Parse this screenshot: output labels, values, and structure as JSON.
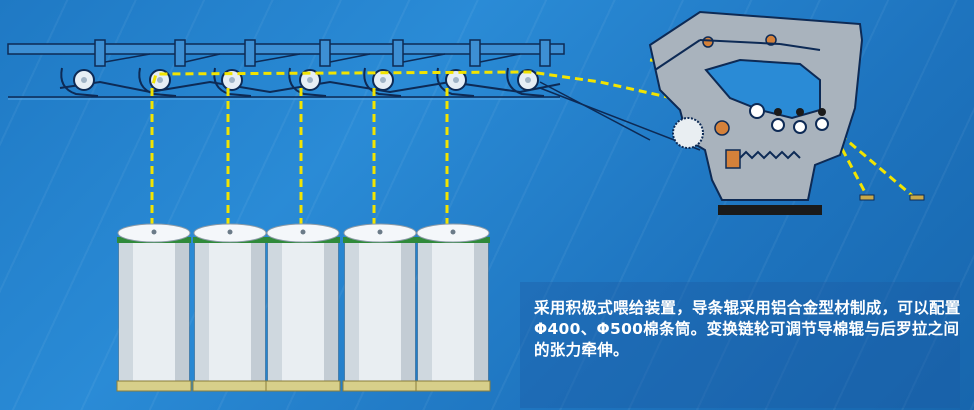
{
  "caption": {
    "text": "采用积极式喂给装置，导条辊采用铝合金型材制成，可以配置Φ400、Φ500棉条筒。变换链轮可调节导棉辊与后罗拉之间的张力牵伸。"
  },
  "colors": {
    "background": "#2a8bd6",
    "frame_line": "#0d2a55",
    "sliver": "#f2e400",
    "can_body": "#e9eef2",
    "can_rim": "#2f8a3a",
    "can_base": "#d7cf8a",
    "machine_body": "#a9b3bd",
    "caption_text": "#ffffff"
  },
  "diagram": {
    "can_count": 5,
    "guide_roller_count": 6,
    "icons": [
      "sliver-can",
      "guide-roller",
      "drafting-roller",
      "cotton-feeding-creel",
      "drawing-frame-head"
    ]
  }
}
